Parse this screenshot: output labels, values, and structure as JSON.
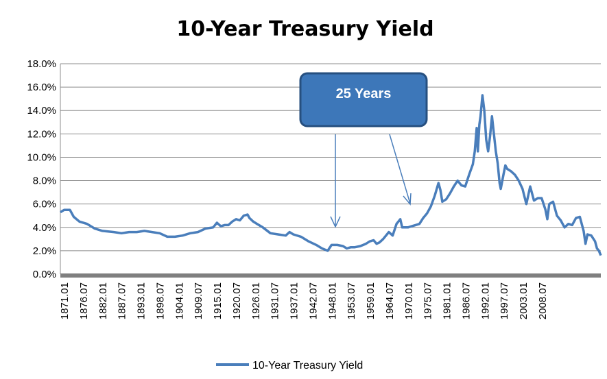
{
  "chart_data": {
    "type": "line",
    "title": "10-Year Treasury Yield",
    "xlabel": "",
    "ylabel": "",
    "ylim": [
      0,
      18
    ],
    "xlim": [
      1871.0,
      2012.5
    ],
    "y_ticks": [
      "0.0%",
      "2.0%",
      "4.0%",
      "6.0%",
      "8.0%",
      "10.0%",
      "12.0%",
      "14.0%",
      "16.0%",
      "18.0%"
    ],
    "x_ticks": [
      "1871.01",
      "1876.07",
      "1882.01",
      "1887.07",
      "1893.01",
      "1898.07",
      "1904.01",
      "1909.07",
      "1915.01",
      "1920.07",
      "1926.01",
      "1931.07",
      "1937.01",
      "1942.07",
      "1948.01",
      "1953.07",
      "1959.01",
      "1964.07",
      "1970.01",
      "1975.07",
      "1981.01",
      "1986.07",
      "1992.01",
      "1997.07",
      "2003.01",
      "2008.07"
    ],
    "grid": true,
    "legend": "bottom",
    "colors": {
      "series": "#4a7ebb",
      "callout": "#3d77b9",
      "callout_border": "#264f7f",
      "grid": "#8c8c8c",
      "axis_band": "#7f7f7f"
    },
    "annotations": [
      {
        "text": "25 Years"
      }
    ],
    "series": [
      {
        "name": "10-Year Treasury Yield",
        "x": [
          1871.0,
          1872.0,
          1873.5,
          1874.5,
          1876.0,
          1878.0,
          1880.0,
          1882.0,
          1885.0,
          1887.0,
          1889.0,
          1891.0,
          1893.0,
          1895.0,
          1897.0,
          1899.0,
          1901.0,
          1903.0,
          1905.0,
          1907.0,
          1909.0,
          1911.0,
          1912.0,
          1913.0,
          1914.0,
          1915.0,
          1916.0,
          1917.0,
          1918.0,
          1919.0,
          1920.0,
          1920.5,
          1921.5,
          1922.5,
          1924.0,
          1926.0,
          1928.0,
          1930.0,
          1931.0,
          1932.0,
          1934.0,
          1936.0,
          1938.0,
          1939.5,
          1941.0,
          1942.0,
          1943.5,
          1945.0,
          1946.0,
          1947.0,
          1948.0,
          1949.5,
          1951.0,
          1952.0,
          1953.0,
          1953.8,
          1954.5,
          1955.5,
          1957.0,
          1958.0,
          1959.0,
          1960.0,
          1960.5,
          1961.0,
          1962.0,
          1963.0,
          1964.0,
          1965.0,
          1966.0,
          1967.0,
          1968.0,
          1969.0,
          1970.0,
          1970.5,
          1971.0,
          1972.0,
          1973.0,
          1974.0,
          1975.0,
          1976.0,
          1977.0,
          1978.0,
          1979.0,
          1979.5,
          1980.0,
          1980.3,
          1980.7,
          1981.0,
          1981.5,
          1982.0,
          1982.5,
          1983.0,
          1983.5,
          1984.0,
          1984.5,
          1985.0,
          1985.5,
          1986.0,
          1986.3,
          1987.0,
          1987.5,
          1988.0,
          1989.0,
          1990.0,
          1991.0,
          1992.0,
          1993.0,
          1994.0,
          1995.0,
          1996.0,
          1997.0,
          1998.0,
          1998.5,
          1999.0,
          2000.0,
          2001.0,
          2002.0,
          2003.0,
          2004.0,
          2005.0,
          2006.0,
          2007.0,
          2008.0,
          2008.5,
          2009.0,
          2010.0,
          2011.0,
          2011.5,
          2012.0,
          2012.5
        ],
        "y": [
          5.3,
          5.5,
          5.5,
          4.9,
          4.5,
          4.3,
          3.9,
          3.7,
          3.6,
          3.5,
          3.6,
          3.6,
          3.7,
          3.6,
          3.5,
          3.2,
          3.2,
          3.3,
          3.5,
          3.6,
          3.9,
          4.0,
          4.4,
          4.1,
          4.2,
          4.2,
          4.5,
          4.7,
          4.6,
          5.0,
          5.1,
          4.8,
          4.5,
          4.3,
          4.0,
          3.5,
          3.4,
          3.3,
          3.6,
          3.4,
          3.2,
          2.8,
          2.5,
          2.2,
          2.0,
          2.5,
          2.5,
          2.4,
          2.2,
          2.3,
          2.3,
          2.4,
          2.6,
          2.8,
          2.9,
          2.6,
          2.7,
          3.0,
          3.6,
          3.3,
          4.3,
          4.7,
          4.0,
          4.0,
          4.0,
          4.1,
          4.2,
          4.3,
          4.8,
          5.2,
          5.8,
          6.7,
          7.8,
          7.2,
          6.2,
          6.4,
          6.9,
          7.5,
          8.0,
          7.6,
          7.5,
          8.5,
          9.4,
          10.5,
          12.5,
          10.5,
          12.8,
          13.5,
          15.3,
          14.0,
          11.5,
          10.5,
          11.8,
          13.5,
          12.0,
          10.5,
          9.5,
          7.8,
          7.3,
          8.5,
          9.3,
          9.0,
          8.8,
          8.5,
          8.0,
          7.3,
          6.0,
          7.5,
          6.3,
          6.5,
          6.5,
          5.5,
          4.7,
          6.0,
          6.2,
          5.0,
          4.6,
          4.0,
          4.3,
          4.2,
          4.8,
          4.9,
          3.7,
          2.6,
          3.4,
          3.3,
          2.8,
          2.2,
          2.0,
          1.6
        ]
      }
    ]
  }
}
